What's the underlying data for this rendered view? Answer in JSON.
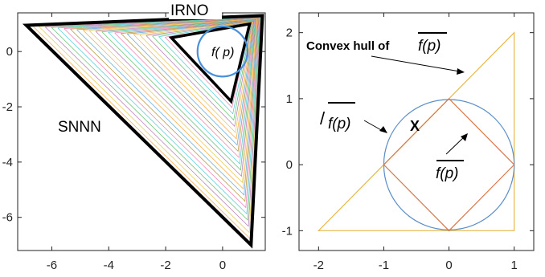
{
  "chart_data": [
    {
      "type": "line",
      "panel": "left",
      "xlim": [
        -7.2,
        1.5
      ],
      "ylim": [
        -7.2,
        1.4
      ],
      "xticks": [
        -6,
        -4,
        -2,
        0
      ],
      "yticks": [
        0,
        -2,
        -4,
        -6
      ],
      "xtick_labels": [
        "-6",
        "-4",
        "-2",
        "0"
      ],
      "ytick_labels": [
        "0",
        "-2",
        "-4",
        "-6"
      ],
      "grid": false,
      "outer_triangle": {
        "x": [
          -6.9,
          1.4,
          1.0,
          -6.9
        ],
        "y": [
          0.95,
          1.3,
          -7.0,
          0.95
        ]
      },
      "inner_triangle": {
        "x": [
          -1.8,
          0.95,
          0.3,
          -1.8
        ],
        "y": [
          0.5,
          1.0,
          -1.8,
          0.5
        ]
      },
      "circle": {
        "cx": 0.0,
        "cy": 0.0,
        "r": 0.88,
        "color": "#4a90d9"
      },
      "nested_curves": {
        "count": 22,
        "colors": [
          "#5da5da",
          "#faa43a",
          "#e6c84a",
          "#b276b2",
          "#60bd68",
          "#4dc9d6",
          "#f17cb0",
          "#b2912f"
        ]
      },
      "annotations": [
        {
          "text": "IRNO",
          "x": -1.2,
          "y": 1.3
        },
        {
          "text": "f( p)",
          "x": -0.1,
          "y": 0.0
        },
        {
          "text": "SNNN",
          "x": -5.3,
          "y": -2.7
        }
      ]
    },
    {
      "type": "line",
      "panel": "right",
      "xlim": [
        -2.3,
        1.3
      ],
      "ylim": [
        -1.3,
        2.3
      ],
      "xticks": [
        -2,
        -1,
        0,
        1
      ],
      "yticks": [
        2,
        1,
        0,
        -1
      ],
      "xtick_labels": [
        "-2",
        "-1",
        "0",
        "1"
      ],
      "ytick_labels": [
        "2",
        "1",
        "0",
        "-1"
      ],
      "grid": false,
      "convex_hull": {
        "x": [
          -2,
          1,
          1,
          -2
        ],
        "y": [
          -1,
          2,
          -1,
          -1
        ],
        "color": "#e6b84a"
      },
      "circle": {
        "cx": 0,
        "cy": 0,
        "r": 1,
        "color": "#5b8fc7"
      },
      "diamond": {
        "x": [
          1,
          0,
          -1,
          0,
          1
        ],
        "y": [
          0,
          1,
          0,
          -1,
          0
        ],
        "color": "#d9784a"
      },
      "annotations": [
        {
          "text": "Convex hull of",
          "bar_text": "f(p)",
          "x": -2.1,
          "y": 1.85
        },
        {
          "text": "f(p)",
          "prefix": "/",
          "x": -2.0,
          "y": 0.82
        },
        {
          "text": "X",
          "x": -0.55,
          "y": 0.58
        },
        {
          "text": "f(p)",
          "x": -0.08,
          "y": -0.25
        }
      ]
    }
  ]
}
